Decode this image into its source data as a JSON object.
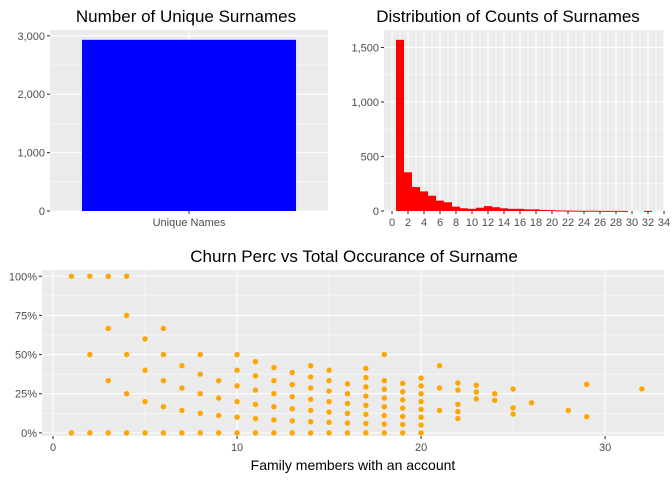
{
  "chart_data": [
    {
      "type": "bar",
      "title": "Number of Unique Surnames",
      "categories": [
        "Unique Names"
      ],
      "values": [
        2932
      ],
      "ylim": [
        0,
        3100
      ],
      "yticks": [
        0,
        1000,
        2000,
        3000
      ],
      "ytick_labels": [
        "0",
        "1,000",
        "2,000",
        "3,000"
      ],
      "xlabel": "",
      "ylabel": "",
      "grid": true,
      "color": "#0000ff"
    },
    {
      "type": "bar",
      "title": "Distribution of Counts of Surnames",
      "bin_width": 1,
      "x": [
        1,
        2,
        3,
        4,
        5,
        6,
        7,
        8,
        9,
        10,
        11,
        12,
        13,
        14,
        15,
        16,
        17,
        18,
        19,
        20,
        21,
        22,
        23,
        24,
        25,
        26,
        27,
        28,
        29,
        30,
        31,
        32
      ],
      "values": [
        1570,
        355,
        220,
        180,
        140,
        95,
        80,
        40,
        25,
        20,
        30,
        45,
        35,
        25,
        20,
        20,
        15,
        15,
        10,
        8,
        5,
        4,
        3,
        2,
        3,
        2,
        1,
        2,
        1,
        0,
        0,
        1
      ],
      "xlim": [
        -1,
        34
      ],
      "ylim": [
        0,
        1660
      ],
      "xticks": [
        0,
        2,
        4,
        6,
        8,
        10,
        12,
        14,
        16,
        18,
        20,
        22,
        24,
        26,
        28,
        30,
        32,
        34
      ],
      "xtick_labels": [
        "0",
        "2",
        "4",
        "6",
        "8",
        "10",
        "12",
        "14",
        "16",
        "18",
        "20",
        "22",
        "24",
        "26",
        "28",
        "30",
        "32",
        "34"
      ],
      "yticks": [
        0,
        500,
        1000,
        1500
      ],
      "ytick_labels": [
        "0",
        "500",
        "1,000",
        "1,500"
      ],
      "xlabel": "",
      "ylabel": "",
      "grid": true,
      "color": "#ff0000"
    },
    {
      "type": "scatter",
      "title": "Churn Perc vs Total Occurance of Surname",
      "xlabel": "Family members with an account",
      "ylabel": "",
      "xlim": [
        -0.6,
        33.2
      ],
      "ylim": [
        -0.02,
        1.04
      ],
      "xticks": [
        0,
        10,
        20,
        30
      ],
      "xtick_labels": [
        "0",
        "10",
        "20",
        "30"
      ],
      "yticks": [
        0,
        0.25,
        0.5,
        0.75,
        1.0
      ],
      "ytick_labels": [
        "0%",
        "25%",
        "50%",
        "75%",
        "100%"
      ],
      "grid": true,
      "color": "#ffa500",
      "points": [
        [
          1,
          0
        ],
        [
          1,
          1
        ],
        [
          2,
          0
        ],
        [
          2,
          0.5
        ],
        [
          2,
          1
        ],
        [
          3,
          0
        ],
        [
          3,
          0.333
        ],
        [
          3,
          0.667
        ],
        [
          3,
          1
        ],
        [
          4,
          0
        ],
        [
          4,
          0.25
        ],
        [
          4,
          0.5
        ],
        [
          4,
          0.75
        ],
        [
          4,
          1
        ],
        [
          5,
          0
        ],
        [
          5,
          0.2
        ],
        [
          5,
          0.4
        ],
        [
          5,
          0.6
        ],
        [
          6,
          0
        ],
        [
          6,
          0.167
        ],
        [
          6,
          0.333
        ],
        [
          6,
          0.5
        ],
        [
          6,
          0.667
        ],
        [
          7,
          0
        ],
        [
          7,
          0.143
        ],
        [
          7,
          0.286
        ],
        [
          7,
          0.429
        ],
        [
          8,
          0
        ],
        [
          8,
          0.125
        ],
        [
          8,
          0.25
        ],
        [
          8,
          0.375
        ],
        [
          8,
          0.5
        ],
        [
          9,
          0
        ],
        [
          9,
          0.111
        ],
        [
          9,
          0.222
        ],
        [
          9,
          0.333
        ],
        [
          10,
          0
        ],
        [
          10,
          0.1
        ],
        [
          10,
          0.2
        ],
        [
          10,
          0.3
        ],
        [
          10,
          0.4
        ],
        [
          10,
          0.5
        ],
        [
          11,
          0
        ],
        [
          11,
          0.091
        ],
        [
          11,
          0.182
        ],
        [
          11,
          0.273
        ],
        [
          11,
          0.364
        ],
        [
          11,
          0.455
        ],
        [
          12,
          0
        ],
        [
          12,
          0.083
        ],
        [
          12,
          0.167
        ],
        [
          12,
          0.25
        ],
        [
          12,
          0.333
        ],
        [
          12,
          0.417
        ],
        [
          13,
          0
        ],
        [
          13,
          0.077
        ],
        [
          13,
          0.154
        ],
        [
          13,
          0.231
        ],
        [
          13,
          0.308
        ],
        [
          13,
          0.385
        ],
        [
          14,
          0
        ],
        [
          14,
          0.071
        ],
        [
          14,
          0.143
        ],
        [
          14,
          0.214
        ],
        [
          14,
          0.286
        ],
        [
          14,
          0.357
        ],
        [
          14,
          0.429
        ],
        [
          15,
          0
        ],
        [
          15,
          0.067
        ],
        [
          15,
          0.133
        ],
        [
          15,
          0.2
        ],
        [
          15,
          0.267
        ],
        [
          15,
          0.333
        ],
        [
          15,
          0.4
        ],
        [
          16,
          0
        ],
        [
          16,
          0.063
        ],
        [
          16,
          0.125
        ],
        [
          16,
          0.188
        ],
        [
          16,
          0.25
        ],
        [
          16,
          0.313
        ],
        [
          17,
          0
        ],
        [
          17,
          0.059
        ],
        [
          17,
          0.118
        ],
        [
          17,
          0.176
        ],
        [
          17,
          0.235
        ],
        [
          17,
          0.294
        ],
        [
          17,
          0.353
        ],
        [
          17,
          0.412
        ],
        [
          18,
          0
        ],
        [
          18,
          0.056
        ],
        [
          18,
          0.111
        ],
        [
          18,
          0.167
        ],
        [
          18,
          0.222
        ],
        [
          18,
          0.278
        ],
        [
          18,
          0.333
        ],
        [
          18,
          0.5
        ],
        [
          19,
          0
        ],
        [
          19,
          0.053
        ],
        [
          19,
          0.105
        ],
        [
          19,
          0.158
        ],
        [
          19,
          0.211
        ],
        [
          19,
          0.263
        ],
        [
          19,
          0.316
        ],
        [
          20,
          0
        ],
        [
          20,
          0.05
        ],
        [
          20,
          0.1
        ],
        [
          20,
          0.15
        ],
        [
          20,
          0.2
        ],
        [
          20,
          0.25
        ],
        [
          20,
          0.3
        ],
        [
          20,
          0.35
        ],
        [
          21,
          0.143
        ],
        [
          21,
          0.286
        ],
        [
          21,
          0.429
        ],
        [
          22,
          0.091
        ],
        [
          22,
          0.136
        ],
        [
          22,
          0.182
        ],
        [
          22,
          0.273
        ],
        [
          22,
          0.318
        ],
        [
          23,
          0.217
        ],
        [
          23,
          0.261
        ],
        [
          23,
          0.304
        ],
        [
          24,
          0.208
        ],
        [
          24,
          0.25
        ],
        [
          25,
          0.12
        ],
        [
          25,
          0.16
        ],
        [
          25,
          0.28
        ],
        [
          26,
          0.192
        ],
        [
          28,
          0.143
        ],
        [
          29,
          0.103
        ],
        [
          29,
          0.31
        ],
        [
          32,
          0.281
        ]
      ]
    }
  ]
}
